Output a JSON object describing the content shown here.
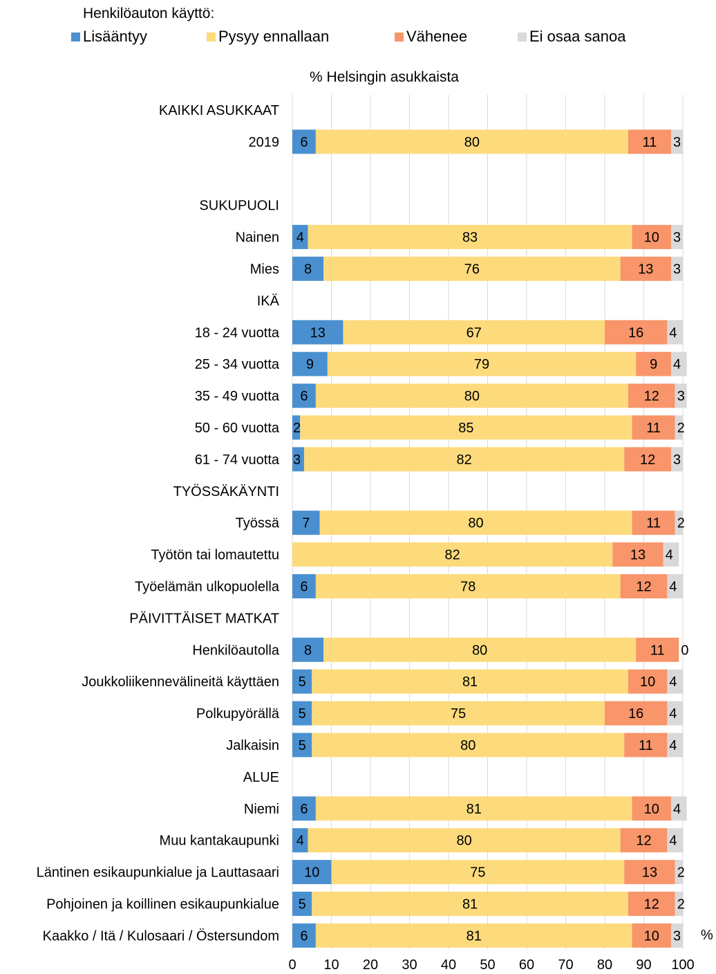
{
  "legend_title": "Henkilöauton käyttö:",
  "subtitle": "% Helsingin asukkaista",
  "unit_label": "%",
  "chart_data": {
    "type": "bar",
    "orientation": "horizontal",
    "stacked": true,
    "xlim": [
      0,
      100
    ],
    "x_ticks": [
      "0",
      "10",
      "20",
      "30",
      "40",
      "50",
      "60",
      "70",
      "80",
      "90",
      "100"
    ],
    "grid": true,
    "legend_position": "top",
    "series": [
      {
        "name": "Lisääntyy",
        "color": "#4a90d0"
      },
      {
        "name": "Pysyy ennallaan",
        "color": "#fddb7c"
      },
      {
        "name": "Vähenee",
        "color": "#f8956a"
      },
      {
        "name": "Ei osaa sanoa",
        "color": "#d9d9d9"
      }
    ],
    "rows": [
      {
        "label": "KAIKKI ASUKKAAT",
        "header": true
      },
      {
        "label": "2019",
        "values": [
          6,
          80,
          11,
          3
        ]
      },
      {
        "label": "",
        "spacer": true
      },
      {
        "label": "SUKUPUOLI",
        "header": true
      },
      {
        "label": "Nainen",
        "values": [
          4,
          83,
          10,
          3
        ]
      },
      {
        "label": "Mies",
        "values": [
          8,
          76,
          13,
          3
        ]
      },
      {
        "label": "IKÄ",
        "header": true
      },
      {
        "label": "18 - 24 vuotta",
        "values": [
          13,
          67,
          16,
          4
        ]
      },
      {
        "label": "25 - 34 vuotta",
        "values": [
          9,
          79,
          9,
          4
        ]
      },
      {
        "label": "35 - 49 vuotta",
        "values": [
          6,
          80,
          12,
          3
        ]
      },
      {
        "label": "50 - 60 vuotta",
        "values": [
          2,
          85,
          11,
          2
        ]
      },
      {
        "label": "61 - 74 vuotta",
        "values": [
          3,
          82,
          12,
          3
        ]
      },
      {
        "label": "TYÖSSÄKÄYNTI",
        "header": true
      },
      {
        "label": "Työssä",
        "values": [
          7,
          80,
          11,
          2
        ]
      },
      {
        "label": "Työtön tai lomautettu",
        "values": [
          0,
          82,
          13,
          4
        ],
        "hide_zero": [
          0
        ]
      },
      {
        "label": "Työelämän ulkopuolella",
        "values": [
          6,
          78,
          12,
          4
        ]
      },
      {
        "label": "PÄIVITTÄISET MATKAT",
        "header": true
      },
      {
        "label": "Henkilöautolla",
        "values": [
          8,
          80,
          11,
          0
        ]
      },
      {
        "label": "Joukkoliikennevälineitä käyttäen",
        "values": [
          5,
          81,
          10,
          4
        ]
      },
      {
        "label": "Polkupyörällä",
        "values": [
          5,
          75,
          16,
          4
        ]
      },
      {
        "label": "Jalkaisin",
        "values": [
          5,
          80,
          11,
          4
        ]
      },
      {
        "label": "ALUE",
        "header": true
      },
      {
        "label": "Niemi",
        "values": [
          6,
          81,
          10,
          4
        ]
      },
      {
        "label": "Muu kantakaupunki",
        "values": [
          4,
          80,
          12,
          4
        ]
      },
      {
        "label": "Läntinen esikaupunkialue ja Lauttasaari",
        "values": [
          10,
          75,
          13,
          2
        ]
      },
      {
        "label": "Pohjoinen ja koillinen esikaupunkialue",
        "values": [
          5,
          81,
          12,
          2
        ]
      },
      {
        "label": "Kaakko / Itä / Kulosaari / Östersundom",
        "values": [
          6,
          81,
          10,
          3
        ]
      }
    ]
  }
}
